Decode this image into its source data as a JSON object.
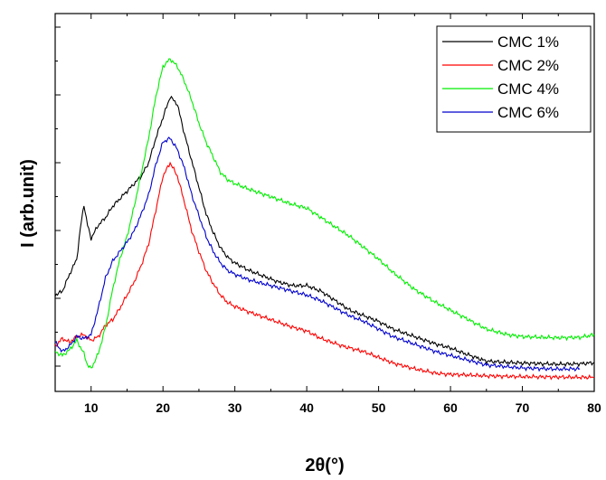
{
  "chart_data": {
    "type": "line",
    "xlabel": "2θ(°)",
    "ylabel": "I (arb.unit)",
    "xlim": [
      5,
      80
    ],
    "xticks": [
      10,
      20,
      30,
      40,
      50,
      60,
      70,
      80
    ],
    "ylim": [
      0,
      100
    ],
    "y_tick_labels_shown": false,
    "legend_position": "top-right",
    "grid": false,
    "series": [
      {
        "name": "CMC 1%",
        "color": "#000000",
        "points": [
          [
            5,
            25.5
          ],
          [
            6,
            26.5
          ],
          [
            7,
            31
          ],
          [
            8,
            35
          ],
          [
            8.5,
            43
          ],
          [
            9,
            49.5
          ],
          [
            9.5,
            44
          ],
          [
            10,
            40.5
          ],
          [
            11,
            44
          ],
          [
            12,
            46
          ],
          [
            13,
            49
          ],
          [
            14,
            51
          ],
          [
            15,
            53
          ],
          [
            16,
            55
          ],
          [
            17,
            57
          ],
          [
            18,
            60.5
          ],
          [
            19,
            67
          ],
          [
            20,
            72.5
          ],
          [
            21,
            78
          ],
          [
            22,
            76
          ],
          [
            23,
            68
          ],
          [
            24,
            61
          ],
          [
            25,
            54
          ],
          [
            26,
            47
          ],
          [
            27,
            42
          ],
          [
            28,
            38
          ],
          [
            29,
            35.5
          ],
          [
            30,
            34
          ],
          [
            32,
            32
          ],
          [
            34,
            30.5
          ],
          [
            36,
            29
          ],
          [
            38,
            28
          ],
          [
            40,
            28
          ],
          [
            42,
            26.5
          ],
          [
            44,
            24
          ],
          [
            46,
            21.5
          ],
          [
            48,
            20
          ],
          [
            50,
            18.5
          ],
          [
            52,
            16.5
          ],
          [
            55,
            14.5
          ],
          [
            58,
            12.5
          ],
          [
            60,
            11.5
          ],
          [
            62,
            10
          ],
          [
            65,
            8
          ],
          [
            70,
            7.5
          ],
          [
            75,
            7.2
          ],
          [
            78,
            7.3
          ],
          [
            80,
            7.6
          ]
        ]
      },
      {
        "name": "CMC 2%",
        "color": "#ff0000",
        "points": [
          [
            5,
            12
          ],
          [
            6,
            14
          ],
          [
            7,
            13
          ],
          [
            8,
            14.5
          ],
          [
            9,
            15
          ],
          [
            10,
            13.5
          ],
          [
            11,
            14.5
          ],
          [
            12,
            17.5
          ],
          [
            13,
            19
          ],
          [
            14,
            22
          ],
          [
            15,
            25.5
          ],
          [
            16,
            29
          ],
          [
            17,
            33.5
          ],
          [
            18,
            39
          ],
          [
            19,
            48
          ],
          [
            20,
            57
          ],
          [
            21,
            60.5
          ],
          [
            22,
            57
          ],
          [
            23,
            50
          ],
          [
            24,
            42.5
          ],
          [
            25,
            37
          ],
          [
            26,
            32
          ],
          [
            27,
            28.5
          ],
          [
            28,
            25.5
          ],
          [
            29,
            23.5
          ],
          [
            30,
            22.5
          ],
          [
            32,
            21
          ],
          [
            35,
            19
          ],
          [
            38,
            17
          ],
          [
            40,
            16
          ],
          [
            42,
            14
          ],
          [
            45,
            12
          ],
          [
            48,
            10.5
          ],
          [
            50,
            9
          ],
          [
            52,
            7.5
          ],
          [
            55,
            6
          ],
          [
            58,
            4.8
          ],
          [
            60,
            4.5
          ],
          [
            63,
            4.3
          ],
          [
            65,
            4.1
          ],
          [
            70,
            3.9
          ],
          [
            75,
            3.8
          ],
          [
            80,
            3.7
          ]
        ]
      },
      {
        "name": "CMC 4%",
        "color": "#00ee00",
        "points": [
          [
            5,
            10.5
          ],
          [
            6,
            9.5
          ],
          [
            7,
            11
          ],
          [
            8,
            13.5
          ],
          [
            9,
            10
          ],
          [
            9.5,
            7
          ],
          [
            10,
            6
          ],
          [
            11,
            10
          ],
          [
            12,
            17
          ],
          [
            13,
            27
          ],
          [
            14,
            35
          ],
          [
            15,
            41
          ],
          [
            16,
            49
          ],
          [
            17,
            58
          ],
          [
            18,
            67
          ],
          [
            19,
            78
          ],
          [
            20,
            86
          ],
          [
            21,
            88
          ],
          [
            22,
            86
          ],
          [
            23,
            82
          ],
          [
            24,
            77
          ],
          [
            25,
            71
          ],
          [
            26,
            66
          ],
          [
            27,
            62
          ],
          [
            28,
            58
          ],
          [
            29,
            56
          ],
          [
            30,
            55
          ],
          [
            32,
            53.5
          ],
          [
            35,
            51.5
          ],
          [
            38,
            49.5
          ],
          [
            40,
            48.5
          ],
          [
            42,
            46
          ],
          [
            44,
            43.5
          ],
          [
            46,
            41
          ],
          [
            48,
            38
          ],
          [
            50,
            35
          ],
          [
            52,
            31.5
          ],
          [
            55,
            27
          ],
          [
            58,
            23.5
          ],
          [
            60,
            21.5
          ],
          [
            63,
            18.5
          ],
          [
            65,
            16.5
          ],
          [
            68,
            15
          ],
          [
            70,
            14.5
          ],
          [
            75,
            14.2
          ],
          [
            78,
            14.3
          ],
          [
            80,
            15
          ]
        ]
      },
      {
        "name": "CMC 6%",
        "color": "#0000cc",
        "points": [
          [
            5,
            13
          ],
          [
            6,
            10.5
          ],
          [
            7,
            12
          ],
          [
            8,
            14.5
          ],
          [
            9,
            14
          ],
          [
            10,
            15
          ],
          [
            11,
            22
          ],
          [
            12,
            30
          ],
          [
            13,
            34.5
          ],
          [
            14,
            37
          ],
          [
            15,
            39.5
          ],
          [
            16,
            42.5
          ],
          [
            17,
            47
          ],
          [
            18,
            52
          ],
          [
            19,
            60
          ],
          [
            20,
            66
          ],
          [
            21,
            67
          ],
          [
            22,
            64
          ],
          [
            23,
            59
          ],
          [
            24,
            52
          ],
          [
            25,
            46.5
          ],
          [
            26,
            41
          ],
          [
            27,
            37
          ],
          [
            28,
            34
          ],
          [
            29,
            32
          ],
          [
            30,
            31
          ],
          [
            32,
            29.5
          ],
          [
            35,
            28
          ],
          [
            38,
            26.5
          ],
          [
            40,
            25.5
          ],
          [
            42,
            24
          ],
          [
            44,
            22
          ],
          [
            46,
            20
          ],
          [
            48,
            18.5
          ],
          [
            50,
            16.5
          ],
          [
            52,
            14.5
          ],
          [
            55,
            12.5
          ],
          [
            58,
            10.5
          ],
          [
            60,
            9.5
          ],
          [
            63,
            8
          ],
          [
            65,
            7
          ],
          [
            70,
            6.2
          ],
          [
            75,
            5.9
          ],
          [
            78,
            6
          ]
        ]
      }
    ]
  }
}
